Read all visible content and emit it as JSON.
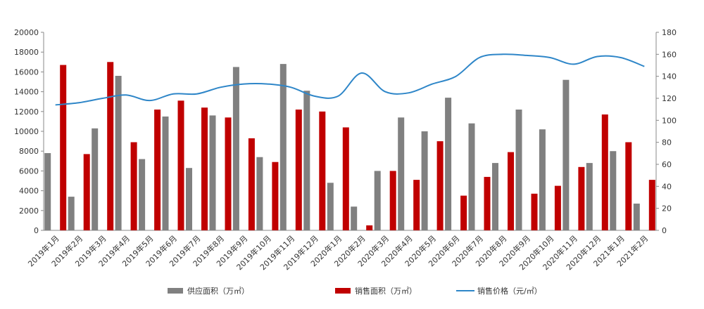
{
  "chart_data": {
    "type": "bar",
    "categories": [
      "2019年1月",
      "2019年2月",
      "2019年3月",
      "2019年4月",
      "2019年5月",
      "2019年6月",
      "2019年7月",
      "2019年8月",
      "2019年9月",
      "2019年10月",
      "2019年11月",
      "2019年12月",
      "2020年1月",
      "2020年2月",
      "2020年3月",
      "2020年4月",
      "2020年5月",
      "2020年6月",
      "2020年7月",
      "2020年8月",
      "2020年9月",
      "2020年10月",
      "2020年11月",
      "2020年12月",
      "2021年1月",
      "2021年2月"
    ],
    "series": [
      {
        "name": "供应面积（万㎡）",
        "type": "bar",
        "axis": "left",
        "color": "#808080",
        "values": [
          7800,
          3400,
          10300,
          15600,
          7200,
          11500,
          6300,
          11600,
          16500,
          7400,
          16800,
          14100,
          4800,
          2400,
          6000,
          11400,
          10000,
          13400,
          10800,
          6800,
          12200,
          10200,
          15200,
          6800,
          8000,
          2700
        ]
      },
      {
        "name": "销售面积（万㎡）",
        "type": "bar",
        "axis": "left",
        "color": "#c00000",
        "values": [
          16700,
          7700,
          17000,
          8900,
          12200,
          13100,
          12400,
          11400,
          9300,
          6900,
          12200,
          12000,
          10400,
          500,
          6000,
          5100,
          9000,
          3500,
          5400,
          7900,
          3700,
          4500,
          6400,
          11700,
          8900,
          5100
        ]
      },
      {
        "name": "销售价格（元/㎡）",
        "type": "line",
        "axis": "right",
        "color": "#2e86c8",
        "values": [
          114,
          116,
          120,
          123,
          118,
          124,
          124,
          130,
          133,
          133,
          130,
          122,
          122,
          143,
          126,
          125,
          133,
          140,
          157,
          160,
          159,
          157,
          151,
          158,
          157,
          149
        ]
      }
    ],
    "y_left": {
      "min": 0,
      "max": 20000,
      "ticks": [
        0,
        2000,
        4000,
        6000,
        8000,
        10000,
        12000,
        14000,
        16000,
        18000,
        20000
      ]
    },
    "y_right": {
      "min": 0,
      "max": 180,
      "ticks": [
        0,
        20,
        40,
        60,
        80,
        100,
        120,
        140,
        160,
        180
      ]
    },
    "grid": false,
    "legend_position": "bottom"
  }
}
